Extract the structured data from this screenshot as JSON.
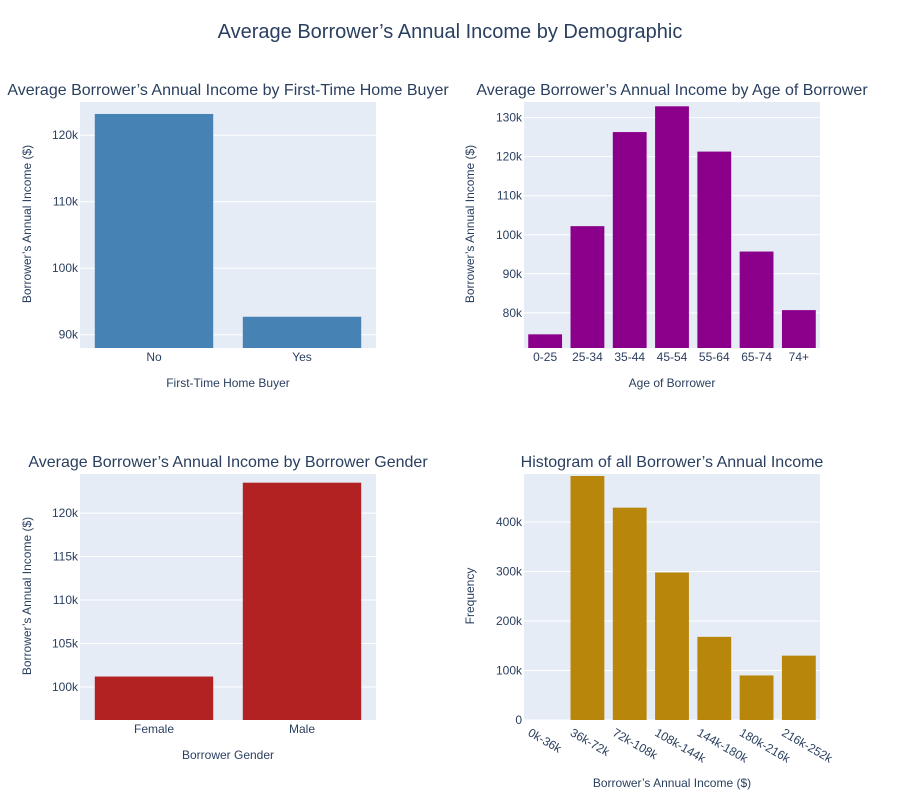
{
  "title": "Average Borrower’s Annual Income by Demographic",
  "colors": {
    "plot_bg": "#e5ecf6",
    "text": "#2a3f5f",
    "grid": "#ffffff"
  },
  "chart_data": [
    {
      "type": "bar",
      "title": "Average Borrower’s Annual Income by First-Time Home Buyer",
      "xlabel": "First-Time Home Buyer",
      "ylabel": "Borrower’s Annual Income ($)",
      "categories": [
        "No",
        "Yes"
      ],
      "values": [
        123200,
        92700
      ],
      "ylim": [
        88000,
        125000
      ],
      "yticks": [
        90000,
        100000,
        110000,
        120000
      ],
      "color": "#4682b4",
      "grid": true
    },
    {
      "type": "bar",
      "title": "Average Borrower’s Annual Income by Age of Borrower",
      "xlabel": "Age of Borrower",
      "ylabel": "Borrower’s Annual Income ($)",
      "categories": [
        "0-25",
        "25-34",
        "35-44",
        "45-54",
        "55-64",
        "65-74",
        "74+"
      ],
      "values": [
        74500,
        102200,
        126300,
        132900,
        121300,
        95700,
        80700
      ],
      "ylim": [
        71000,
        134000
      ],
      "yticks": [
        80000,
        90000,
        100000,
        110000,
        120000,
        130000
      ],
      "color": "#8b008b",
      "grid": true
    },
    {
      "type": "bar",
      "title": "Average Borrower’s Annual Income by Borrower Gender",
      "xlabel": "Borrower Gender",
      "ylabel": "Borrower’s Annual Income ($)",
      "categories": [
        "Female",
        "Male"
      ],
      "values": [
        101200,
        123500
      ],
      "ylim": [
        96200,
        124500
      ],
      "yticks": [
        100000,
        105000,
        110000,
        115000,
        120000
      ],
      "color": "#b22222",
      "grid": true
    },
    {
      "type": "bar",
      "title": "Histogram of all Borrower’s Annual Income",
      "xlabel": "Borrower’s Annual Income ($)",
      "ylabel": "Frequency",
      "categories": [
        "0k-36k",
        "36k-72k",
        "72k-108k",
        "108k-144k",
        "144k-180k",
        "180k-216k",
        "216k-252k"
      ],
      "values": [
        0,
        493000,
        429000,
        298000,
        168000,
        90000,
        130000
      ],
      "ylim": [
        0,
        497000
      ],
      "yticks": [
        0,
        100000,
        200000,
        300000,
        400000
      ],
      "color": "#b8860b",
      "rotate_x_labels": true,
      "grid": true
    }
  ]
}
